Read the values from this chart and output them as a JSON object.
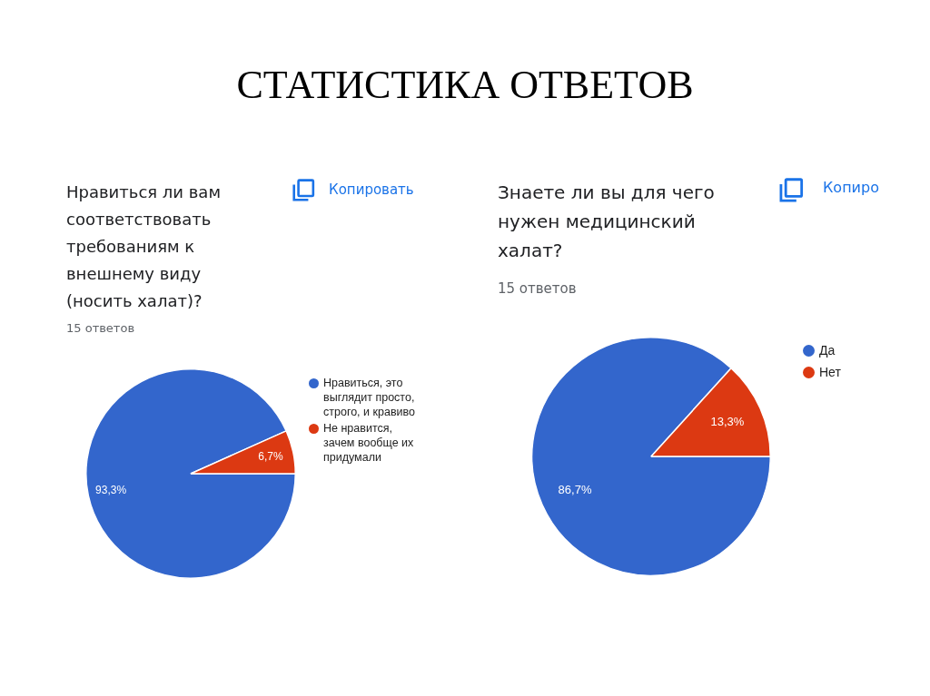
{
  "chart_data": [
    {
      "type": "other",
      "title": "СТАТИСТИКА ОТВЕТОВ"
    },
    {
      "type": "pie",
      "title": "Нравиться ли вам соответствовать требованиям к внешнему виду (носить халат)?",
      "subtitle": "15 ответов",
      "annotations": [
        "Копировать"
      ],
      "categories": [
        "Нравиться, это выглядит просто, строго, и кравиво",
        "Не нравится, зачем вообще их придумали"
      ],
      "values": [
        93.3,
        6.7
      ],
      "colors": [
        "#3366cc",
        "#dc3912"
      ],
      "value_labels": [
        "93,3%",
        "6,7%"
      ],
      "legend": "top right"
    },
    {
      "type": "pie",
      "title": "Знаете ли вы для чего нужен медицинский халат?",
      "subtitle": "15 ответов",
      "annotations": [
        "Копиро"
      ],
      "categories": [
        "Да",
        "Нет"
      ],
      "values": [
        86.7,
        13.3
      ],
      "colors": [
        "#3366cc",
        "#dc3912"
      ],
      "value_labels": [
        "86,7%",
        "13,3%"
      ],
      "legend": "top right"
    }
  ]
}
